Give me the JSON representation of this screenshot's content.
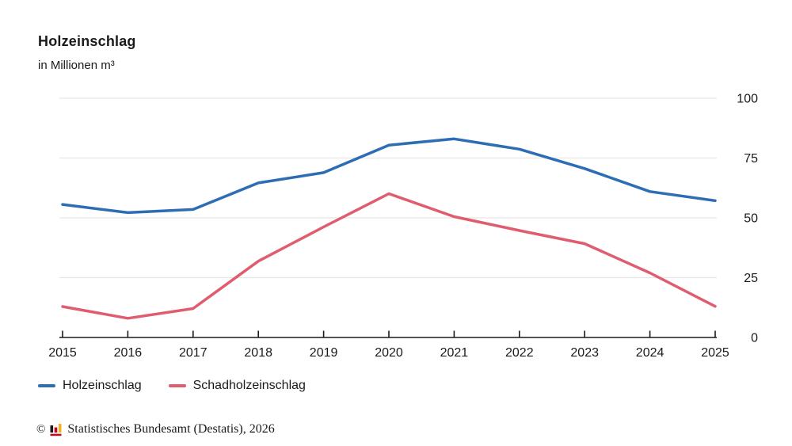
{
  "title": "Holzeinschlag",
  "subtitle": "in Millionen m³",
  "legend": {
    "items": [
      {
        "label": "Holzeinschlag",
        "color": "#2D6DB4"
      },
      {
        "label": "Schadholzeinschlag",
        "color": "#E05C6F"
      }
    ]
  },
  "footer": {
    "copyright": "©",
    "source": "Statistisches Bundesamt (Destatis), 2026",
    "logo": {
      "bar_black": "#1a1a1a",
      "bar_red": "#c00a1e",
      "bar_gold": "#f0b323",
      "underline_red": "#c00a1e"
    }
  },
  "colors": {
    "text": "#1a1a1a",
    "axis": "#1a1a1a",
    "gridline": "#e6e6e6",
    "series_blue": "#2D6DB4",
    "series_red": "#E05C6F",
    "background": "#ffffff"
  },
  "chart_data": {
    "type": "line",
    "title": "Holzeinschlag",
    "ylabel": "in Millionen m³",
    "x": [
      2015,
      2016,
      2017,
      2018,
      2019,
      2020,
      2021,
      2022,
      2023,
      2024,
      2025
    ],
    "series": [
      {
        "name": "Holzeinschlag",
        "color": "#2D6DB4",
        "values": [
          55.6,
          52.2,
          53.5,
          64.6,
          68.9,
          80.4,
          83.0,
          78.7,
          70.6,
          61.0,
          57.2
        ]
      },
      {
        "name": "Schadholzeinschlag",
        "color": "#E05C6F",
        "values": [
          12.9,
          8.0,
          12.1,
          31.9,
          46.2,
          60.1,
          50.5,
          44.7,
          39.2,
          27.0,
          13.0
        ]
      }
    ],
    "ylim": [
      0,
      100
    ],
    "yticks": [
      0,
      25,
      50,
      75,
      100
    ],
    "grid": true,
    "legend_position": "bottom"
  }
}
